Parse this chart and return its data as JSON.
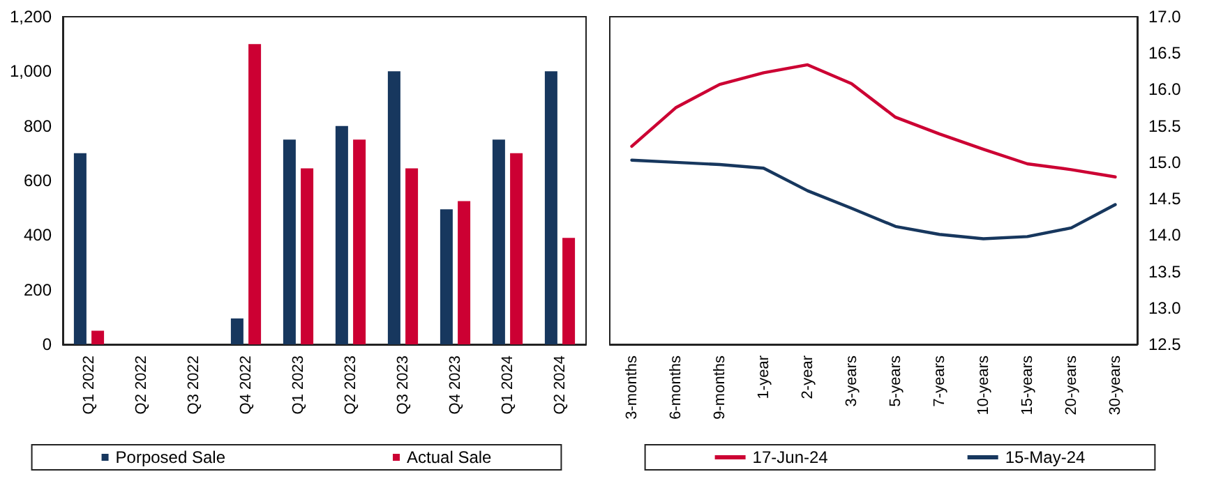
{
  "chart_data": [
    {
      "type": "bar",
      "categories": [
        "Q1 2022",
        "Q2 2022",
        "Q3 2022",
        "Q4 2022",
        "Q1 2023",
        "Q2 2023",
        "Q3 2023",
        "Q4 2023",
        "Q1 2024",
        "Q2 2024"
      ],
      "series": [
        {
          "name": "Porposed Sale",
          "color": "#17375e",
          "values": [
            700,
            null,
            null,
            95,
            750,
            800,
            1000,
            495,
            750,
            1000
          ]
        },
        {
          "name": "Actual Sale",
          "color": "#cc0033",
          "values": [
            50,
            null,
            null,
            1100,
            645,
            750,
            645,
            525,
            700,
            390
          ]
        }
      ],
      "ylim": [
        0,
        1200
      ],
      "yticks": [
        0,
        200,
        400,
        600,
        800,
        {
          "value": 1000,
          "label": "1,000"
        },
        {
          "value": 1200,
          "label": "1,200"
        }
      ],
      "grid": false,
      "legend": "bottom"
    },
    {
      "type": "line",
      "categories": [
        "3-months",
        "6-months",
        "9-months",
        "1-year",
        "2-year",
        "3-years",
        "5-years",
        "7-years",
        "10-years",
        "15-years",
        "20-years",
        "30-years"
      ],
      "series": [
        {
          "name": "17-Jun-24",
          "color": "#cc0033",
          "values": [
            15.22,
            15.75,
            16.07,
            16.23,
            16.34,
            16.08,
            15.62,
            15.39,
            15.18,
            14.98,
            14.9,
            14.8
          ]
        },
        {
          "name": "15-May-24",
          "color": "#17375e",
          "values": [
            15.03,
            15.0,
            14.97,
            14.92,
            14.61,
            14.37,
            14.12,
            14.01,
            13.95,
            13.98,
            14.1,
            14.42
          ]
        }
      ],
      "ylim": [
        12.5,
        17
      ],
      "yticks": [
        {
          "value": 12.5,
          "label": "12.5"
        },
        {
          "value": 13,
          "label": "13.0"
        },
        {
          "value": 13.5,
          "label": "13.5"
        },
        {
          "value": 14,
          "label": "14.0"
        },
        {
          "value": 14.5,
          "label": "14.5"
        },
        {
          "value": 15,
          "label": "15.0"
        },
        {
          "value": 15.5,
          "label": "15.5"
        },
        {
          "value": 16,
          "label": "16.0"
        },
        {
          "value": 16.5,
          "label": "16.5"
        },
        {
          "value": 17,
          "label": "17.0"
        }
      ],
      "grid": false,
      "legend": "bottom",
      "marker": "none",
      "line_style": "solid"
    }
  ]
}
